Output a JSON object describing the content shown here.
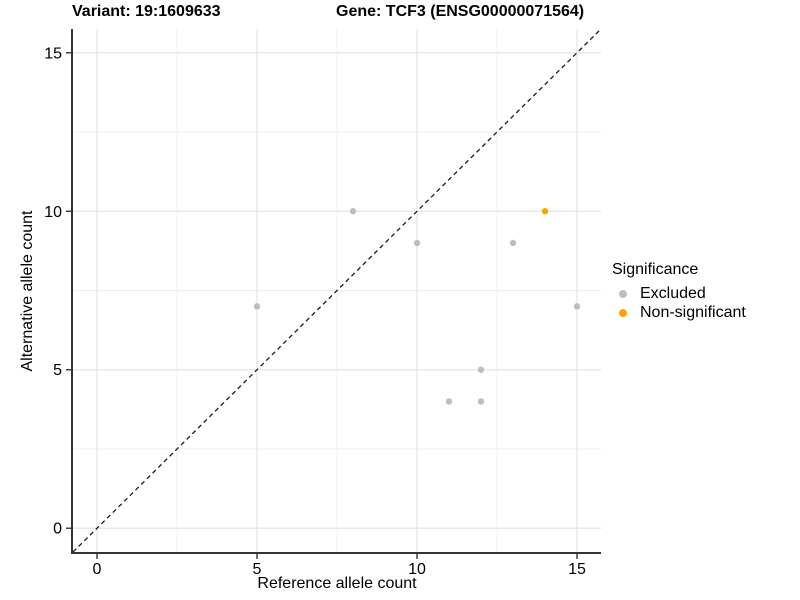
{
  "title": {
    "variant": "Variant: 19:1609633",
    "gene": "Gene: TCF3 (ENSG00000071564)"
  },
  "chart_data": {
    "type": "scatter",
    "title_left": "Variant: 19:1609633",
    "title_right": "Gene: TCF3 (ENSG00000071564)",
    "xlabel": "Reference allele count",
    "ylabel": "Alternative allele count",
    "xlim": [
      -0.75,
      15.75
    ],
    "ylim": [
      -0.75,
      15.75
    ],
    "xticks": [
      0,
      5,
      10,
      15
    ],
    "yticks": [
      0,
      5,
      10,
      15
    ],
    "minor_xticks": [
      2.5,
      7.5,
      12.5
    ],
    "minor_yticks": [
      2.5,
      7.5,
      12.5
    ],
    "grid": "on",
    "identity_line": {
      "type": "dashed",
      "from": [
        -0.75,
        -0.75
      ],
      "to": [
        15.75,
        15.75
      ],
      "color": "#1a1a1a"
    },
    "series": [
      {
        "name": "Excluded",
        "color": "#bebebe",
        "points": [
          [
            5,
            7
          ],
          [
            8,
            10
          ],
          [
            10,
            9
          ],
          [
            11,
            4
          ],
          [
            12,
            4
          ],
          [
            12,
            5
          ],
          [
            13,
            9
          ],
          [
            15,
            7
          ]
        ]
      },
      {
        "name": "Non-significant",
        "color": "#ffa500",
        "points": [
          [
            14,
            10
          ]
        ]
      }
    ],
    "legend": {
      "title": "Significance",
      "position": "right",
      "entries": [
        {
          "label": "Excluded",
          "color": "#bebebe"
        },
        {
          "label": "Non-significant",
          "color": "#ffa500"
        }
      ]
    }
  },
  "colors": {
    "background": "#ffffff",
    "major_grid": "#e4e4e4",
    "minor_grid": "#f0f0f0",
    "axis_line": "#333333",
    "tick": "#333333",
    "text": "#000000"
  }
}
